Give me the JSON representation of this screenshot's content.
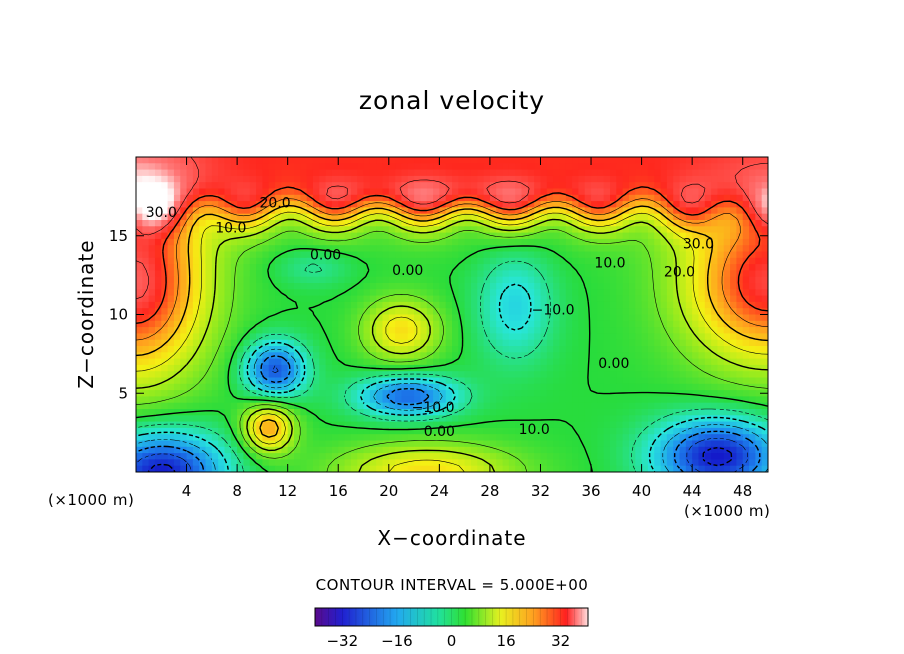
{
  "chart_data": {
    "type": "heatmap",
    "title": "zonal velocity",
    "xlabel": "X−coordinate",
    "ylabel": "Z−coordinate",
    "x_unit_left": "(×1000 m)",
    "x_unit_right": "(×1000 m)",
    "xlim": [
      0,
      50
    ],
    "ylim": [
      0,
      20
    ],
    "x_ticks": [
      4,
      8,
      12,
      16,
      20,
      24,
      28,
      32,
      36,
      40,
      44,
      48
    ],
    "y_ticks": [
      5,
      10,
      15
    ],
    "contour_interval_text": "CONTOUR INTERVAL = 5.000E+00",
    "colorbar": {
      "ticks": [
        -32,
        -16,
        0,
        16,
        32
      ],
      "range": [
        -40,
        40
      ]
    },
    "contour_labels": [
      {
        "text": "30.0",
        "x": 2,
        "z": 16.2
      },
      {
        "text": "20.0",
        "x": 11,
        "z": 16.8
      },
      {
        "text": "10.0",
        "x": 7.5,
        "z": 15.2
      },
      {
        "text": "0.00",
        "x": 15,
        "z": 13.5
      },
      {
        "text": "0.00",
        "x": 21.5,
        "z": 12.5
      },
      {
        "text": "−10.0",
        "x": 33,
        "z": 10
      },
      {
        "text": "10.0",
        "x": 37.5,
        "z": 13
      },
      {
        "text": "30.0",
        "x": 44.5,
        "z": 14.2
      },
      {
        "text": "20.0",
        "x": 43,
        "z": 12.4
      },
      {
        "text": "0.00",
        "x": 37.8,
        "z": 6.6
      },
      {
        "text": "−10.0",
        "x": 23.5,
        "z": 3.8
      },
      {
        "text": "0.00",
        "x": 24,
        "z": 2.3
      },
      {
        "text": "10.0",
        "x": 31.5,
        "z": 2.4
      }
    ],
    "field_centers": [
      {
        "x": 25,
        "z": 8,
        "value": 0,
        "note": "background"
      },
      {
        "x": 0,
        "z": 12,
        "value": 35
      },
      {
        "x": 50,
        "z": 12,
        "value": 32
      },
      {
        "x": 25,
        "z": 17.5,
        "value": 30
      },
      {
        "x": 15,
        "z": 19,
        "value": 25
      },
      {
        "x": 36,
        "z": 19,
        "value": 28
      },
      {
        "x": 21,
        "z": 9,
        "value": 18
      },
      {
        "x": 10,
        "z": 3,
        "value": 22
      },
      {
        "x": 11,
        "z": 6.5,
        "value": -22
      },
      {
        "x": 21,
        "z": 4.8,
        "value": -20
      },
      {
        "x": 30,
        "z": 11.5,
        "value": -10
      },
      {
        "x": 3,
        "z": 1,
        "value": -30
      },
      {
        "x": 45,
        "z": 1.5,
        "value": -30
      },
      {
        "x": 22,
        "z": 0,
        "value": 18
      }
    ]
  }
}
